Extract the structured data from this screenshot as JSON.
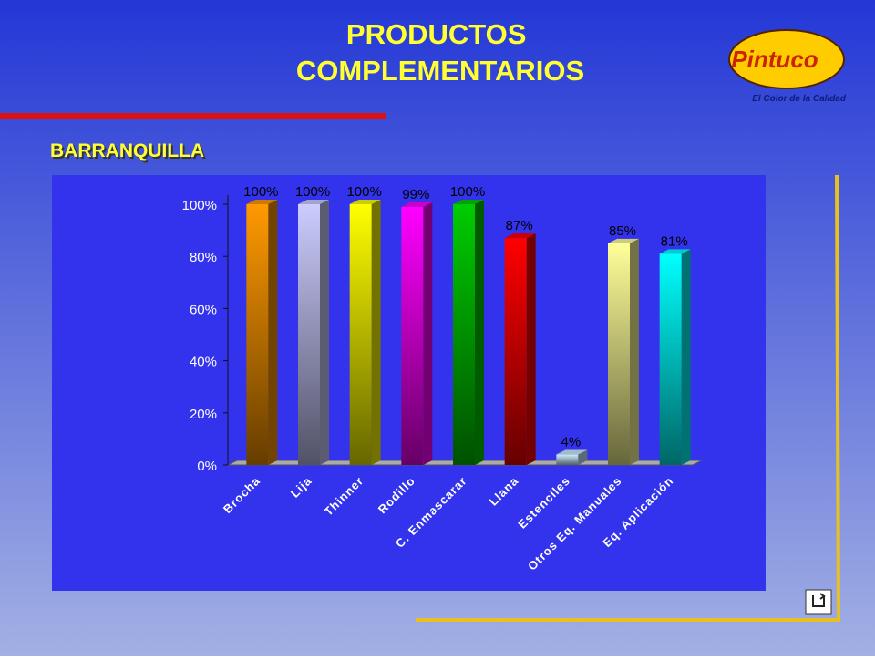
{
  "chart_data": {
    "type": "bar",
    "title": "PRODUCTOS COMPLEMENTARIOS",
    "subtitle": "BARRANQUILLA",
    "categories": [
      "Brocha",
      "Lija",
      "Thinner",
      "Rodillo",
      "C. Enmascarar",
      "Llana",
      "Estenciles",
      "Otros Eq. Manuales",
      "Eq. Aplicación"
    ],
    "values": [
      100,
      100,
      100,
      99,
      100,
      87,
      4,
      85,
      81
    ],
    "value_labels": [
      "100%",
      "100%",
      "100%",
      "99%",
      "100%",
      "87%",
      "4%",
      "85%",
      "81%"
    ],
    "colors": [
      "#ff9900",
      "#ccccff",
      "#ffff00",
      "#ff00ff",
      "#00cc00",
      "#ff0000",
      "#ccecff",
      "#ffff99",
      "#00ffff"
    ],
    "ylim": [
      0,
      100
    ],
    "yticks": [
      {
        "value": 0,
        "label": "0%"
      },
      {
        "value": 20,
        "label": "20%"
      },
      {
        "value": 40,
        "label": "40%"
      },
      {
        "value": 60,
        "label": "60%"
      },
      {
        "value": 80,
        "label": "80%"
      },
      {
        "value": 100,
        "label": "100%"
      }
    ]
  },
  "logo": {
    "name": "Pintuco",
    "tagline": "El Color de la Calidad"
  }
}
